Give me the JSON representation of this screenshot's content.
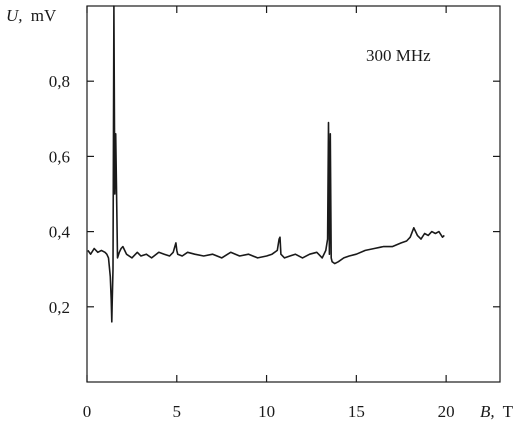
{
  "chart_data": {
    "type": "line",
    "title": "",
    "annotation": "300 MHz",
    "xlabel_symbol": "B,",
    "xlabel_unit": "T",
    "ylabel_symbol": "U,",
    "ylabel_unit": "mV",
    "xlim": [
      0,
      23
    ],
    "ylim": [
      0,
      1.0
    ],
    "xticks": [
      0,
      5,
      10,
      15,
      20
    ],
    "xtick_labels": [
      "0",
      "5",
      "10",
      "15",
      "20"
    ],
    "yticks": [
      0.2,
      0.4,
      0.6,
      0.8
    ],
    "ytick_labels": [
      "0,2",
      "0,4",
      "0,6",
      "0,8"
    ],
    "grid": false,
    "series": [
      {
        "color": "#1a1a1a",
        "x": [
          0.05,
          0.2,
          0.4,
          0.6,
          0.8,
          1.0,
          1.1,
          1.2,
          1.3,
          1.35,
          1.38,
          1.4,
          1.45,
          1.5,
          1.55,
          1.6,
          1.7,
          1.8,
          1.9,
          2.0,
          2.2,
          2.5,
          2.8,
          3.0,
          3.3,
          3.6,
          4.0,
          4.3,
          4.6,
          4.8,
          4.95,
          5.0,
          5.05,
          5.3,
          5.6,
          6.0,
          6.5,
          7.0,
          7.5,
          8.0,
          8.5,
          9.0,
          9.5,
          10.0,
          10.3,
          10.6,
          10.7,
          10.75,
          10.8,
          11.0,
          11.3,
          11.6,
          12.0,
          12.4,
          12.8,
          13.1,
          13.3,
          13.4,
          13.45,
          13.5,
          13.55,
          13.6,
          13.65,
          13.8,
          14.0,
          14.3,
          14.6,
          15.0,
          15.5,
          16.0,
          16.5,
          17.0,
          17.5,
          17.8,
          18.0,
          18.2,
          18.4,
          18.6,
          18.8,
          19.0,
          19.2,
          19.4,
          19.6,
          19.8,
          19.9
        ],
        "y": [
          0.35,
          0.34,
          0.355,
          0.345,
          0.35,
          0.345,
          0.34,
          0.33,
          0.28,
          0.22,
          0.16,
          0.2,
          0.3,
          1.0,
          0.5,
          0.66,
          0.33,
          0.345,
          0.355,
          0.36,
          0.34,
          0.33,
          0.345,
          0.335,
          0.34,
          0.33,
          0.345,
          0.34,
          0.335,
          0.345,
          0.37,
          0.35,
          0.34,
          0.335,
          0.345,
          0.34,
          0.335,
          0.34,
          0.33,
          0.345,
          0.335,
          0.34,
          0.33,
          0.335,
          0.34,
          0.35,
          0.38,
          0.385,
          0.34,
          0.33,
          0.335,
          0.34,
          0.33,
          0.34,
          0.345,
          0.33,
          0.35,
          0.38,
          0.69,
          0.34,
          0.66,
          0.33,
          0.32,
          0.315,
          0.32,
          0.33,
          0.335,
          0.34,
          0.35,
          0.355,
          0.36,
          0.36,
          0.37,
          0.375,
          0.385,
          0.41,
          0.39,
          0.38,
          0.395,
          0.39,
          0.4,
          0.395,
          0.4,
          0.385,
          0.39
        ]
      }
    ]
  }
}
